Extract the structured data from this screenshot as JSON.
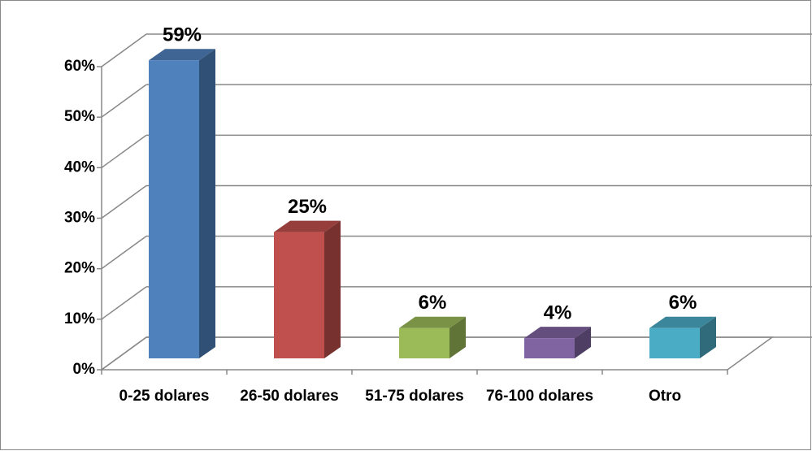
{
  "chart_data": {
    "type": "bar3d",
    "categories": [
      "0-25 dolares",
      "26-50 dolares",
      "51-75 dolares",
      "76-100 dolares",
      "Otro"
    ],
    "values": [
      59,
      25,
      6,
      4,
      6
    ],
    "value_labels": [
      "59%",
      "25%",
      "6%",
      "4%",
      "6%"
    ],
    "colors": [
      "#4f81bd",
      "#c0504d",
      "#9bbb59",
      "#8064a2",
      "#4bacc6"
    ],
    "ylim": [
      0,
      60
    ],
    "yticks": [
      {
        "value": 0,
        "label": "0%"
      },
      {
        "value": 10,
        "label": "10%"
      },
      {
        "value": 20,
        "label": "20%"
      },
      {
        "value": 30,
        "label": "30%"
      },
      {
        "value": 40,
        "label": "40%"
      },
      {
        "value": 50,
        "label": "50%"
      },
      {
        "value": 60,
        "label": "60%"
      }
    ],
    "grid": true
  }
}
